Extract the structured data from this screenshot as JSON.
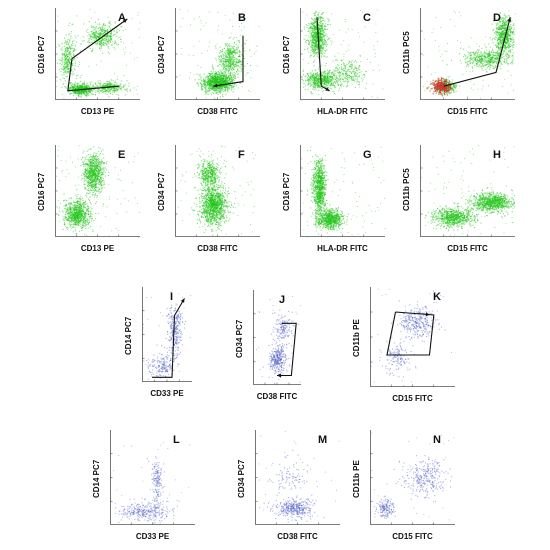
{
  "figure": {
    "colors": {
      "green": "#22c41a",
      "red": "#d63030",
      "blue": "#4b5cc6",
      "arrow": "#111111"
    },
    "panels": [
      {
        "label": "A",
        "xlabel": "CD13 PE",
        "ylabel": "CD16 PC7",
        "color": "green",
        "pop": "a",
        "gate": "ga"
      },
      {
        "label": "B",
        "xlabel": "CD38 FITC",
        "ylabel": "CD34 PC7",
        "color": "green",
        "pop": "b",
        "gate": "gb"
      },
      {
        "label": "C",
        "xlabel": "HLA-DR FITC",
        "ylabel": "CD16 PC7",
        "color": "green",
        "pop": "c",
        "gate": "gc"
      },
      {
        "label": "D",
        "xlabel": "CD15 FITC",
        "ylabel": "CD11b PC5",
        "color": "green",
        "pop": "d",
        "gate": "gd"
      },
      {
        "label": "E",
        "xlabel": "CD13 PE",
        "ylabel": "CD16 PC7",
        "color": "green",
        "pop": "e",
        "gate": ""
      },
      {
        "label": "F",
        "xlabel": "CD38 FITC",
        "ylabel": "CD34 PC7",
        "color": "green",
        "pop": "f",
        "gate": ""
      },
      {
        "label": "G",
        "xlabel": "HLA-DR FITC",
        "ylabel": "CD16 PC7",
        "color": "green",
        "pop": "g",
        "gate": ""
      },
      {
        "label": "H",
        "xlabel": "CD15 FITC",
        "ylabel": "CD11b PC5",
        "color": "green",
        "pop": "h",
        "gate": ""
      },
      {
        "label": "I",
        "xlabel": "CD33 PE",
        "ylabel": "CD14 PC7",
        "color": "blue",
        "pop": "i",
        "gate": "gi"
      },
      {
        "label": "J",
        "xlabel": "CD38 FITC",
        "ylabel": "CD34 PC7",
        "color": "blue",
        "pop": "j",
        "gate": "gj"
      },
      {
        "label": "K",
        "xlabel": "CD15 FITC",
        "ylabel": "CD11b PE",
        "color": "blue",
        "pop": "k",
        "gate": "gk"
      },
      {
        "label": "L",
        "xlabel": "CD33 PE",
        "ylabel": "CD14 PC7",
        "color": "blue",
        "pop": "l",
        "gate": ""
      },
      {
        "label": "M",
        "xlabel": "CD38 FITC",
        "ylabel": "CD34 PC7",
        "color": "blue",
        "pop": "m",
        "gate": ""
      },
      {
        "label": "N",
        "xlabel": "CD15 FITC",
        "ylabel": "CD11b PE",
        "color": "blue",
        "pop": "n",
        "gate": ""
      }
    ]
  }
}
